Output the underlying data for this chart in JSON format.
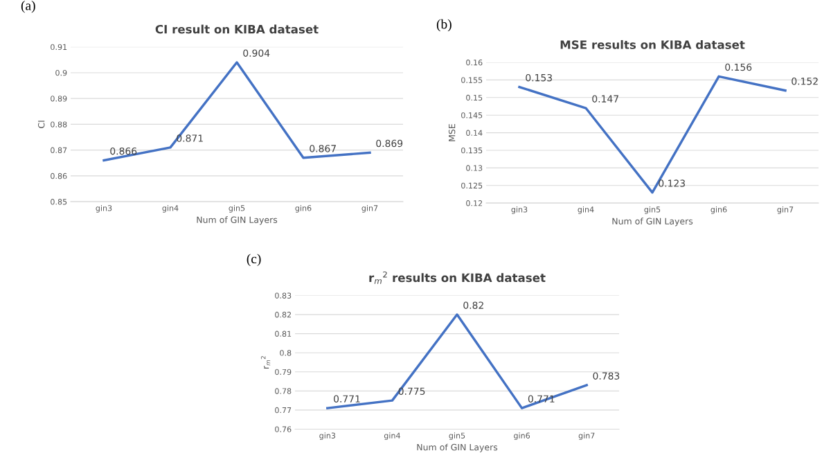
{
  "chart_data": [
    {
      "type": "line",
      "title": "CI result on KIBA dataset",
      "xlabel": "Num of GIN Layers",
      "ylabel": "CI",
      "annotations": [
        "(a)"
      ],
      "categories": [
        "gin3",
        "gin4",
        "gin5",
        "gin6",
        "gin7"
      ],
      "series": [
        {
          "color": "#4472c4",
          "values": [
            0.866,
            0.871,
            0.904,
            0.867,
            0.869
          ]
        }
      ],
      "ylim": [
        0.85,
        0.91
      ],
      "yticks": [
        0.85,
        0.86,
        0.87,
        0.88,
        0.89,
        0.9,
        0.91
      ],
      "grid": "y",
      "data_labels": true
    },
    {
      "type": "line",
      "title": "MSE results on KIBA dataset",
      "xlabel": "Num of GIN Layers",
      "ylabel": "MSE",
      "annotations": [
        "(b)"
      ],
      "categories": [
        "gin3",
        "gin4",
        "gin5",
        "gin6",
        "gin7"
      ],
      "series": [
        {
          "color": "#4472c4",
          "values": [
            0.153,
            0.147,
            0.123,
            0.156,
            0.152
          ]
        }
      ],
      "ylim": [
        0.12,
        0.16
      ],
      "yticks": [
        0.12,
        0.125,
        0.13,
        0.135,
        0.14,
        0.145,
        0.15,
        0.155,
        0.16
      ],
      "grid": "y",
      "data_labels": true
    },
    {
      "type": "line",
      "title": "r$_{m}$$^{2}$ results on KIBA dataset",
      "xlabel": "Num of GIN Layers",
      "ylabel": "r$_{m}$$^{2}$",
      "annotations": [
        "(c)"
      ],
      "categories": [
        "gin3",
        "gin4",
        "gin5",
        "gin6",
        "gin7"
      ],
      "series": [
        {
          "color": "#4472c4",
          "values": [
            0.771,
            0.775,
            0.82,
            0.771,
            0.783
          ]
        }
      ],
      "ylim": [
        0.76,
        0.83
      ],
      "yticks": [
        0.76,
        0.77,
        0.78,
        0.79,
        0.8,
        0.81,
        0.82,
        0.83
      ],
      "grid": "y",
      "data_labels": true
    }
  ]
}
